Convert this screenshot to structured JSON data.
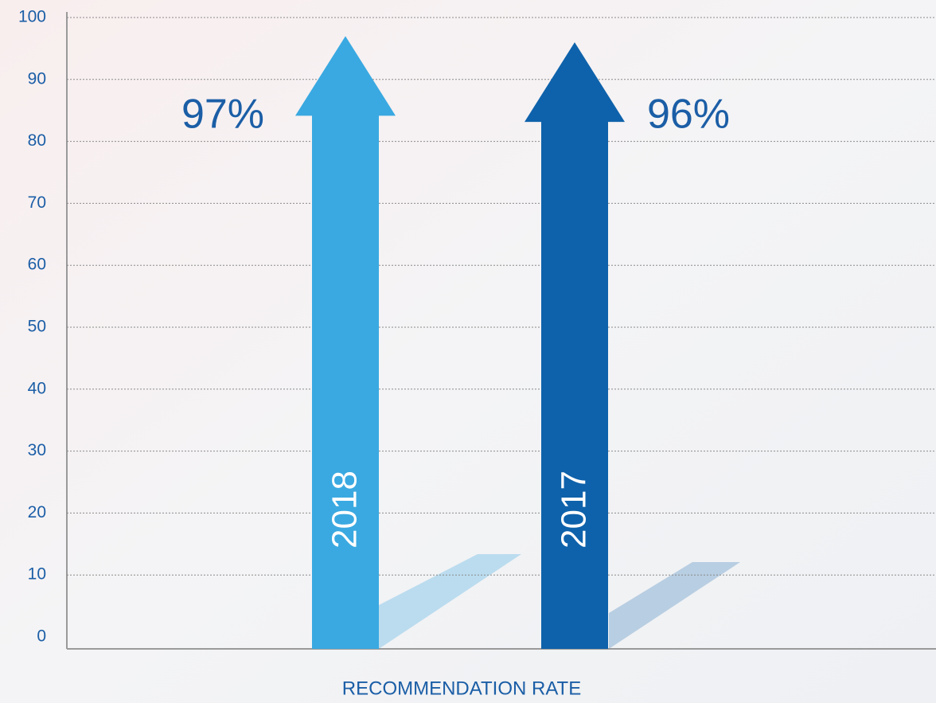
{
  "chart_data": {
    "type": "arrow-bar",
    "categories": [
      "2018",
      "2017"
    ],
    "values": [
      97,
      96
    ],
    "value_labels": [
      "97%",
      "96%"
    ],
    "colors": [
      "#3aa9e1",
      "#0e62ab"
    ],
    "x_label": "RECOMMENDATION RATE",
    "ylim": [
      0,
      100
    ],
    "yticks": [
      0,
      10,
      20,
      30,
      40,
      50,
      60,
      70,
      80,
      90,
      100
    ],
    "grid": true
  }
}
